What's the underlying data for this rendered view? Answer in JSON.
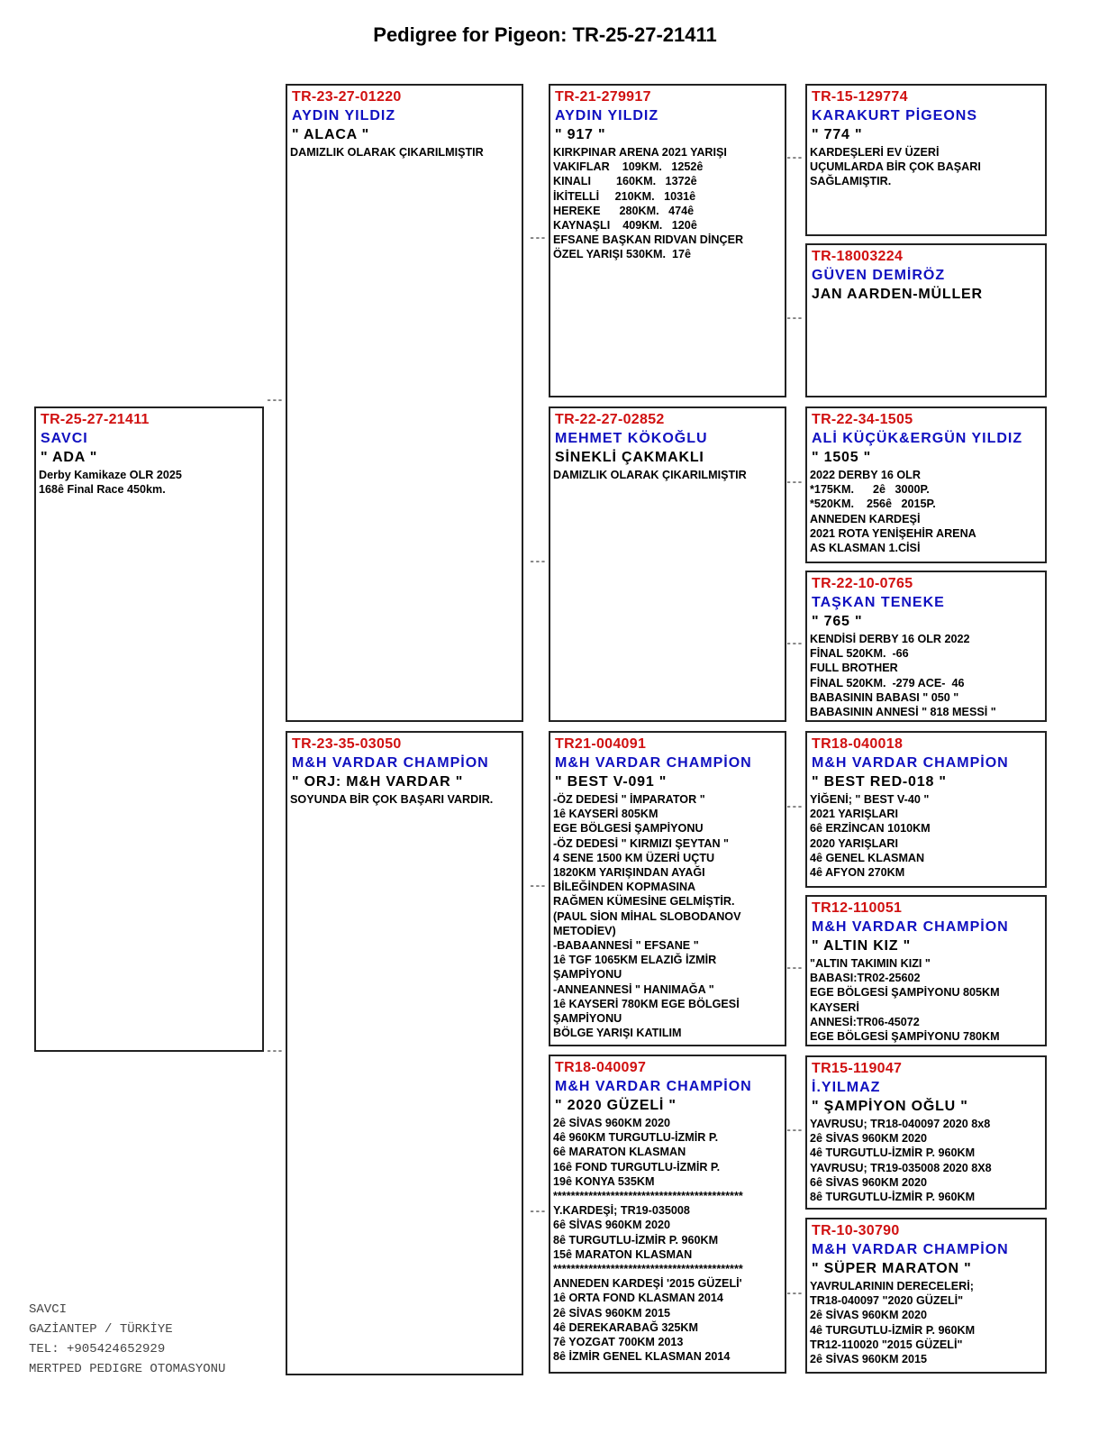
{
  "title": "Pedigree for Pigeon: TR-25-27-21411",
  "colors": {
    "ring_id": "#d01010",
    "owner": "#1010c0",
    "text": "#000000"
  },
  "connector": "---",
  "boxes": [
    {
      "role": "subject",
      "ring": "TR-25-27-21411",
      "owner": "SAVCI",
      "nickname": "\" ADA \"",
      "details": "Derby Kamikaze OLR 2025\n168ê Final Race 450km."
    },
    {
      "role": "sire",
      "ring": "TR-23-27-01220",
      "owner": "AYDIN YILDIZ",
      "nickname": "\" ALACA \"",
      "details": "DAMIZLIK OLARAK ÇIKARILMIŞTIR"
    },
    {
      "role": "dam",
      "ring": "TR-23-35-03050",
      "owner": "M&H VARDAR CHAMPİON",
      "nickname": "\" ORJ: M&H VARDAR \"",
      "details": "SOYUNDA BİR ÇOK BAŞARI VARDIR."
    },
    {
      "role": "sire-sire",
      "ring": "TR-21-279917",
      "owner": "AYDIN YILDIZ",
      "nickname": "\" 917 \"",
      "details": "KIRKPINAR ARENA 2021 YARIŞI\nVAKIFLAR    109KM.   1252ê\nKINALI        160KM.   1372ê\nİKİTELLİ     210KM.   1031ê\nHEREKE      280KM.   474ê\nKAYNAŞLI    409KM.   120ê\nEFSANE BAŞKAN RIDVAN DİNÇER\nÖZEL YARIŞI 530KM.  17ê"
    },
    {
      "role": "sire-dam",
      "ring": "TR-22-27-02852",
      "owner": "MEHMET KÖKOĞLU",
      "nickname": "SİNEKLİ ÇAKMAKLI",
      "details": "DAMIZLIK OLARAK ÇIKARILMIŞTIR"
    },
    {
      "role": "dam-sire",
      "ring": "TR21-004091",
      "owner": "M&H VARDAR CHAMPİON",
      "nickname": "\" BEST V-091 \"",
      "details": "-ÖZ DEDESİ \" İMPARATOR \"\n1ê KAYSERİ 805KM\nEGE BÖLGESİ ŞAMPİYONU\n-ÖZ DEDESİ \" KIRMIZI ŞEYTAN \"\n4 SENE 1500 KM ÜZERİ UÇTU\n1820KM YARIŞINDAN AYAĞI\nBİLEĞİNDEN KOPMASINA\nRAĞMEN KÜMESİNE GELMİŞTİR.\n(PAUL SİON MİHAL SLOBODANOV\nMETODİEV)\n-BABAANNESİ \" EFSANE \"\n1ê TGF 1065KM ELAZIĞ İZMİR\nŞAMPİYONU\n-ANNEANNESİ \" HANIMAĞA \"\n1ê KAYSERİ 780KM EGE BÖLGESİ\nŞAMPİYONU\nBÖLGE YARIŞI KATILIM"
    },
    {
      "role": "dam-dam",
      "ring": "TR18-040097",
      "owner": "M&H VARDAR CHAMPİON",
      "nickname": "\" 2020 GÜZELİ \"",
      "details": "2ê SİVAS 960KM 2020\n4ê 960KM TURGUTLU-İZMİR P.\n6ê MARATON KLASMAN\n16ê FOND TURGUTLU-İZMİR P.\n19ê KONYA 535KM\n*******************************************\nY.KARDEŞİ; TR19-035008\n6ê SİVAS 960KM 2020\n8ê TURGUTLU-İZMİR P. 960KM\n15ê MARATON KLASMAN\n*******************************************\nANNEDEN KARDEŞİ '2015 GÜZELİ'\n1ê ORTA FOND KLASMAN 2014\n2ê SİVAS 960KM 2015\n4ê DEREKARABAĞ 325KM\n7ê YOZGAT 700KM 2013\n8ê İZMİR GENEL KLASMAN 2014"
    },
    {
      "role": "ss-sire",
      "ring": "TR-15-129774",
      "owner": "KARAKURT PİGEONS",
      "nickname": "\" 774 \"",
      "details": "KARDEŞLERİ EV ÜZERİ\nUÇUMLARDA BİR ÇOK BAŞARI\nSAĞLAMIŞTIR."
    },
    {
      "role": "ss-dam",
      "ring": "TR-18003224",
      "owner": "GÜVEN DEMİRÖZ",
      "nickname": "JAN AARDEN-MÜLLER",
      "details": ""
    },
    {
      "role": "sd-sire",
      "ring": "TR-22-34-1505",
      "owner": "ALİ KÜÇÜK&ERGÜN YILDIZ",
      "nickname": "\" 1505 \"",
      "details": "2022 DERBY 16 OLR\n*175KM.      2ê   3000P.\n*520KM.    256ê   2015P.\nANNEDEN KARDEŞİ\n2021 ROTA YENİŞEHİR ARENA\nAS KLASMAN 1.CİSİ"
    },
    {
      "role": "sd-dam",
      "ring": "TR-22-10-0765",
      "owner": "TAŞKAN TENEKE",
      "nickname": "\" 765 \"",
      "details": "KENDİSİ DERBY 16 OLR 2022\nFİNAL 520KM.  -66\nFULL BROTHER\nFİNAL 520KM.  -279 ACE-  46\nBABASININ BABASI \" 050 \"\nBABASININ ANNESİ \" 818 MESSİ \""
    },
    {
      "role": "ds-sire",
      "ring": "TR18-040018",
      "owner": "M&H VARDAR CHAMPİON",
      "nickname": "\" BEST RED-018 \"",
      "details": "YİĞENİ; \" BEST V-40 \"\n2021 YARIŞLARI\n6ê ERZİNCAN 1010KM\n2020 YARIŞLARI\n4ê GENEL KLASMAN\n4ê AFYON 270KM"
    },
    {
      "role": "ds-dam",
      "ring": "TR12-110051",
      "owner": "M&H VARDAR CHAMPİON",
      "nickname": "\" ALTIN KIZ \"",
      "details": "\"ALTIN TAKIMIN KIZI \"\nBABASI:TR02-25602\nEGE BÖLGESİ ŞAMPİYONU 805KM\nKAYSERİ\nANNESİ:TR06-45072\nEGE BÖLGESİ ŞAMPİYONU 780KM"
    },
    {
      "role": "dd-sire",
      "ring": "TR15-119047",
      "owner": "İ.YILMAZ",
      "nickname": "\" ŞAMPİYON OĞLU \"",
      "details": "YAVRUSU; TR18-040097 2020 8x8\n2ê SİVAS 960KM 2020\n4ê TURGUTLU-İZMİR P. 960KM\nYAVRUSU; TR19-035008 2020 8X8\n6ê SİVAS 960KM 2020\n8ê TURGUTLU-İZMİR P. 960KM"
    },
    {
      "role": "dd-dam",
      "ring": "TR-10-30790",
      "owner": "M&H VARDAR CHAMPİON",
      "nickname": "\" SÜPER MARATON \"",
      "details": "YAVRULARININ DERECELERİ;\nTR18-040097 \"2020 GÜZELİ\"\n2ê SİVAS 960KM 2020\n4ê TURGUTLU-İZMİR P. 960KM\nTR12-110020 \"2015 GÜZELİ\"\n2ê SİVAS 960KM 2015"
    }
  ],
  "footer": {
    "name": "SAVCI",
    "location": "GAZİANTEP / TÜRKİYE",
    "phone": "TEL: +905424652929",
    "software": "MERTPED PEDIGRE OTOMASYONU"
  }
}
